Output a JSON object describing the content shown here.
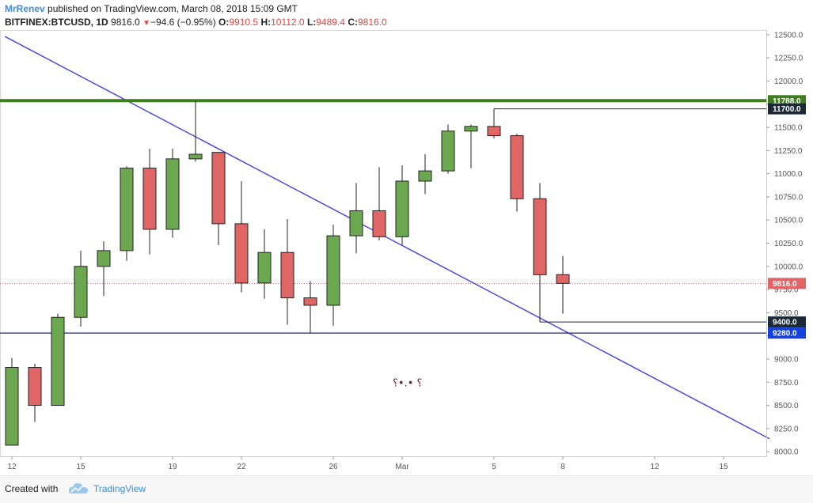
{
  "header": {
    "author": "MrRenev",
    "published": "published on TradingView.com, March 08, 2018 15:09 GMT",
    "symbol": "BITFINEX:BTCUSD, 1D",
    "last": "9816.0",
    "change": "−94.6 (−0.95%)",
    "o_label": "O:",
    "o_value": "9910.5",
    "h_label": "H:",
    "h_value": "10112.0",
    "l_label": "L:",
    "l_value": "9489.4",
    "c_label": "C:",
    "c_value": "9816.0"
  },
  "footer": {
    "created_with": "Created with",
    "brand": "TradingView"
  },
  "colors": {
    "up": "#6ba84f",
    "down": "#e06666",
    "trendline": "#4a4ae0",
    "resistance": "#3f7f1f",
    "support": "#1a2a6c",
    "last_price": "#e06666"
  },
  "chart_data": {
    "type": "candlestick",
    "ylim": [
      7950,
      12550
    ],
    "y_ticks": [
      8000,
      8250,
      8500,
      8750,
      9000,
      9250,
      9500,
      9750,
      10000,
      10250,
      10500,
      10750,
      11000,
      11250,
      11500,
      11750,
      12000,
      12250,
      12500
    ],
    "y_tick_labels": [
      "8000.0",
      "8250.0",
      "8500.0",
      "8750.0",
      "9000.0",
      "9250.0",
      "9500.0",
      "9750.0",
      "10000.0",
      "10250.0",
      "10500.0",
      "10750.0",
      "11000.0",
      "11250.0",
      "11500.0",
      "11750.0",
      "12000.0",
      "12250.0",
      "12500.0"
    ],
    "x_range": [
      -0.3,
      33
    ],
    "x_ticks": [
      {
        "i": 0,
        "label": "12"
      },
      {
        "i": 3,
        "label": "15"
      },
      {
        "i": 7,
        "label": "19"
      },
      {
        "i": 10,
        "label": "22"
      },
      {
        "i": 14,
        "label": "26"
      },
      {
        "i": 17,
        "label": "Mar"
      },
      {
        "i": 21,
        "label": "5"
      },
      {
        "i": 24,
        "label": "8"
      },
      {
        "i": 28,
        "label": "12"
      },
      {
        "i": 31,
        "label": "15"
      }
    ],
    "candles": [
      {
        "date": "Feb 12",
        "o": 8070,
        "h": 9010,
        "l": 8070,
        "c": 8910
      },
      {
        "date": "Feb 13",
        "o": 8910,
        "h": 8950,
        "l": 8320,
        "c": 8500
      },
      {
        "date": "Feb 14",
        "o": 8500,
        "h": 9490,
        "l": 8500,
        "c": 9450
      },
      {
        "date": "Feb 15",
        "o": 9450,
        "h": 10170,
        "l": 9350,
        "c": 10000
      },
      {
        "date": "Feb 16",
        "o": 10000,
        "h": 10270,
        "l": 9680,
        "c": 10170
      },
      {
        "date": "Feb 17",
        "o": 10170,
        "h": 11080,
        "l": 10060,
        "c": 11060
      },
      {
        "date": "Feb 18",
        "o": 11060,
        "h": 11270,
        "l": 10130,
        "c": 10400
      },
      {
        "date": "Feb 19",
        "o": 10400,
        "h": 11270,
        "l": 10310,
        "c": 11160
      },
      {
        "date": "Feb 20",
        "o": 11160,
        "h": 11788,
        "l": 11130,
        "c": 11210
      },
      {
        "date": "Feb 21",
        "o": 11230,
        "h": 11230,
        "l": 10230,
        "c": 10460
      },
      {
        "date": "Feb 22",
        "o": 10460,
        "h": 10920,
        "l": 9720,
        "c": 9820
      },
      {
        "date": "Feb 23",
        "o": 9820,
        "h": 10400,
        "l": 9650,
        "c": 10150
      },
      {
        "date": "Feb 24",
        "o": 10150,
        "h": 10510,
        "l": 9370,
        "c": 9660
      },
      {
        "date": "Feb 25",
        "o": 9660,
        "h": 9840,
        "l": 9280,
        "c": 9580
      },
      {
        "date": "Feb 26",
        "o": 9580,
        "h": 10450,
        "l": 9360,
        "c": 10330
      },
      {
        "date": "Feb 27",
        "o": 10330,
        "h": 10900,
        "l": 10140,
        "c": 10600
      },
      {
        "date": "Feb 28",
        "o": 10600,
        "h": 11070,
        "l": 10280,
        "c": 10320
      },
      {
        "date": "Mar 1",
        "o": 10320,
        "h": 11090,
        "l": 10230,
        "c": 10920
      },
      {
        "date": "Mar 2",
        "o": 10920,
        "h": 11210,
        "l": 10780,
        "c": 11030
      },
      {
        "date": "Mar 3",
        "o": 11030,
        "h": 11530,
        "l": 11000,
        "c": 11460
      },
      {
        "date": "Mar 4",
        "o": 11460,
        "h": 11530,
        "l": 11060,
        "c": 11510
      },
      {
        "date": "Mar 5",
        "o": 11510,
        "h": 11700,
        "l": 11380,
        "c": 11410
      },
      {
        "date": "Mar 6",
        "o": 11410,
        "h": 11430,
        "l": 10590,
        "c": 10730
      },
      {
        "date": "Mar 7",
        "o": 10730,
        "h": 10900,
        "l": 9400,
        "c": 9910
      },
      {
        "date": "Mar 8",
        "o": 9910.5,
        "h": 10112,
        "l": 9489.4,
        "c": 9816
      }
    ],
    "lines": [
      {
        "name": "resistance",
        "y": 11788,
        "label": "11788.0"
      },
      {
        "name": "support",
        "y": 9280,
        "label": "9280.0"
      },
      {
        "name": "high-ray",
        "y": 11700,
        "x_start": 21,
        "label": "11700.0"
      },
      {
        "name": "low-ray",
        "y": 9400,
        "x_start": 23,
        "label": "9400.0"
      },
      {
        "name": "last-price",
        "y": 9816,
        "label": "9816.0"
      }
    ],
    "trendline": {
      "x1": -0.3,
      "y1": 12480,
      "x2": 33,
      "y2": 8140
    },
    "annotation": {
      "text": "؟ •.•؟",
      "x": 17,
      "y": 8750
    }
  }
}
